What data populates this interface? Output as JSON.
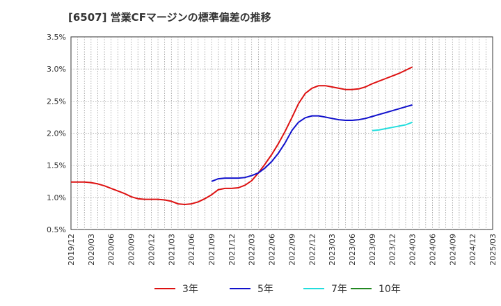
{
  "title": "[6507]  営業CFマージンの標準偏差の推移",
  "chart_data": {
    "type": "line",
    "title": "[6507]  営業CFマージンの標準偏差の推移",
    "xlabel": "",
    "ylabel": "",
    "ylim": [
      0.5,
      3.5
    ],
    "y_ticks": [
      "0.5%",
      "1.0%",
      "1.5%",
      "2.0%",
      "2.5%",
      "3.0%",
      "3.5%"
    ],
    "y_tick_values": [
      0.5,
      1.0,
      1.5,
      2.0,
      2.5,
      3.0,
      3.5
    ],
    "x_range": [
      "2019-12",
      "2025-03"
    ],
    "x_ticks": [
      "2019/12",
      "2020/03",
      "2020/06",
      "2020/09",
      "2020/12",
      "2021/03",
      "2021/06",
      "2021/09",
      "2021/12",
      "2022/03",
      "2022/06",
      "2022/09",
      "2022/12",
      "2023/03",
      "2023/06",
      "2023/09",
      "2023/12",
      "2024/03",
      "2024/06",
      "2024/09",
      "2024/12",
      "2025/03"
    ],
    "grid": true,
    "legend_position": "bottom",
    "series": [
      {
        "name": "3年",
        "color": "#dd1111",
        "x": [
          "2019-12",
          "2020-01",
          "2020-02",
          "2020-03",
          "2020-04",
          "2020-05",
          "2020-06",
          "2020-07",
          "2020-08",
          "2020-09",
          "2020-10",
          "2020-11",
          "2020-12",
          "2021-01",
          "2021-02",
          "2021-03",
          "2021-04",
          "2021-05",
          "2021-06",
          "2021-07",
          "2021-08",
          "2021-09",
          "2021-10",
          "2021-11",
          "2021-12",
          "2022-01",
          "2022-02",
          "2022-03",
          "2022-04",
          "2022-05",
          "2022-06",
          "2022-07",
          "2022-08",
          "2022-09",
          "2022-10",
          "2022-11",
          "2022-12",
          "2023-01",
          "2023-02",
          "2023-03",
          "2023-04",
          "2023-05",
          "2023-06",
          "2023-07",
          "2023-08",
          "2023-09",
          "2023-10",
          "2023-11",
          "2023-12",
          "2024-01",
          "2024-02",
          "2024-03"
        ],
        "values": [
          1.24,
          1.24,
          1.24,
          1.23,
          1.21,
          1.18,
          1.14,
          1.1,
          1.06,
          1.01,
          0.98,
          0.97,
          0.97,
          0.97,
          0.96,
          0.94,
          0.9,
          0.89,
          0.9,
          0.93,
          0.98,
          1.04,
          1.12,
          1.14,
          1.14,
          1.15,
          1.19,
          1.26,
          1.38,
          1.52,
          1.67,
          1.84,
          2.03,
          2.24,
          2.46,
          2.62,
          2.7,
          2.74,
          2.74,
          2.72,
          2.7,
          2.68,
          2.68,
          2.69,
          2.72,
          2.77,
          2.81,
          2.85,
          2.89,
          2.93,
          2.98,
          3.03
        ]
      },
      {
        "name": "5年",
        "color": "#1111cc",
        "x": [
          "2021-09",
          "2021-10",
          "2021-11",
          "2021-12",
          "2022-01",
          "2022-02",
          "2022-03",
          "2022-04",
          "2022-05",
          "2022-06",
          "2022-07",
          "2022-08",
          "2022-09",
          "2022-10",
          "2022-11",
          "2022-12",
          "2023-01",
          "2023-02",
          "2023-03",
          "2023-04",
          "2023-05",
          "2023-06",
          "2023-07",
          "2023-08",
          "2023-09",
          "2023-10",
          "2023-11",
          "2023-12",
          "2024-01",
          "2024-02",
          "2024-03"
        ],
        "values": [
          1.25,
          1.29,
          1.3,
          1.3,
          1.3,
          1.31,
          1.34,
          1.38,
          1.46,
          1.56,
          1.69,
          1.85,
          2.04,
          2.17,
          2.24,
          2.27,
          2.27,
          2.25,
          2.23,
          2.21,
          2.2,
          2.2,
          2.21,
          2.23,
          2.26,
          2.29,
          2.32,
          2.35,
          2.38,
          2.41,
          2.44
        ]
      },
      {
        "name": "7年",
        "color": "#22dddd",
        "x": [
          "2023-09",
          "2023-10",
          "2023-11",
          "2023-12",
          "2024-01",
          "2024-02",
          "2024-03"
        ],
        "values": [
          2.04,
          2.05,
          2.07,
          2.09,
          2.11,
          2.13,
          2.17
        ]
      },
      {
        "name": "10年",
        "color": "#228822",
        "x": [],
        "values": []
      }
    ]
  }
}
